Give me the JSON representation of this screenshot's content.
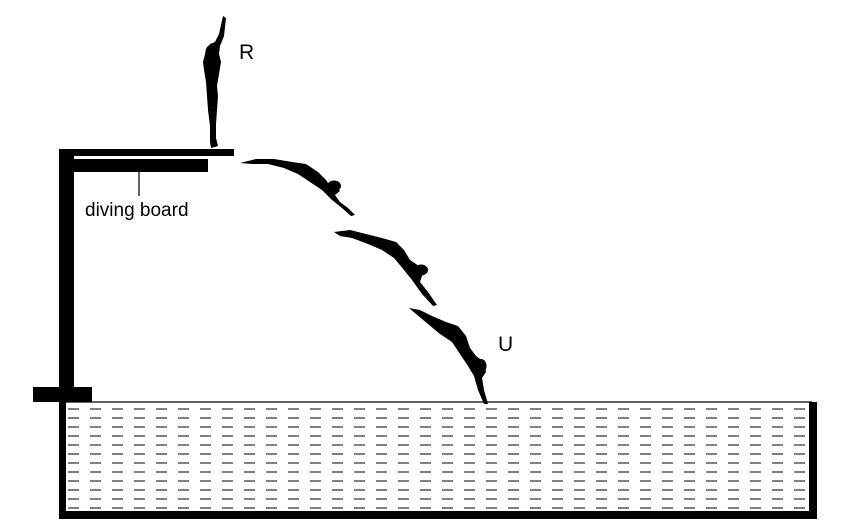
{
  "labels": {
    "start_point": "R",
    "end_point": "U",
    "board": "diving board"
  },
  "colors": {
    "ink": "#000000",
    "water_fill": "#ffffff",
    "background": "#ffffff"
  },
  "icons": [
    "diver-standing-icon",
    "diver-flight-icon",
    "diver-descending-icon",
    "diver-entering-icon"
  ]
}
